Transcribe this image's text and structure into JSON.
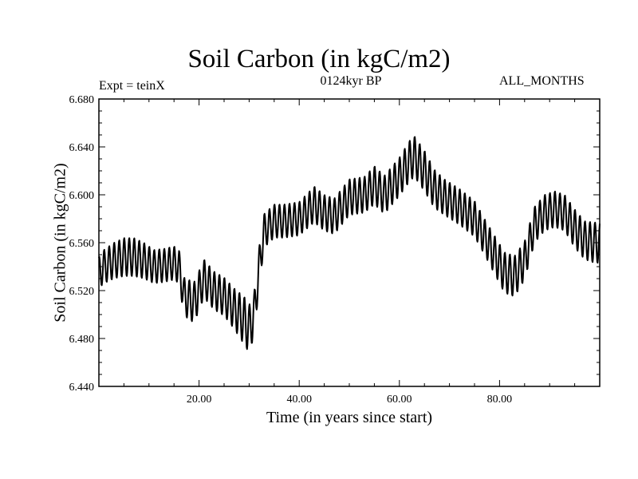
{
  "chart_data": {
    "type": "line",
    "title": "Soil Carbon (in kgC/m2)",
    "subtitle": "0124kyr BP",
    "experiment_label": "Expt = teinX",
    "months_label": "ALL_MONTHS",
    "xlabel": "Time (in years since start)",
    "ylabel": "Soil Carbon (in kgC/m2)",
    "xlim": [
      0,
      100
    ],
    "ylim": [
      6.44,
      6.68
    ],
    "x_ticks": [
      20,
      40,
      60,
      80
    ],
    "x_tick_labels": [
      "20.00",
      "40.00",
      "60.00",
      "80.00"
    ],
    "y_ticks": [
      6.44,
      6.48,
      6.52,
      6.56,
      6.6,
      6.64,
      6.68
    ],
    "y_tick_labels": [
      "6.440",
      "6.480",
      "6.520",
      "6.560",
      "6.600",
      "6.640",
      "6.680"
    ],
    "seasonal_cycle_years": 1,
    "series": [
      {
        "name": "Soil Carbon",
        "color": "#000000",
        "anchor_x": [
          0,
          1,
          3,
          5,
          7,
          9,
          11,
          13,
          15,
          16,
          17,
          19,
          21,
          23,
          25,
          27,
          29,
          30,
          31,
          32,
          33,
          35,
          37,
          40,
          43,
          45,
          47,
          50,
          53,
          55,
          57,
          60,
          62,
          63,
          65,
          67,
          69,
          72,
          75,
          77,
          79,
          81,
          83,
          85,
          87,
          89,
          91,
          93,
          95,
          97,
          99,
          100
        ],
        "mean": [
          6.535,
          6.54,
          6.545,
          6.548,
          6.548,
          6.545,
          6.54,
          6.541,
          6.543,
          6.54,
          6.515,
          6.51,
          6.53,
          6.52,
          6.515,
          6.505,
          6.495,
          6.488,
          6.5,
          6.54,
          6.57,
          6.578,
          6.578,
          6.58,
          6.592,
          6.585,
          6.582,
          6.598,
          6.6,
          6.608,
          6.6,
          6.615,
          6.628,
          6.632,
          6.62,
          6.605,
          6.598,
          6.59,
          6.58,
          6.565,
          6.55,
          6.535,
          6.532,
          6.545,
          6.575,
          6.585,
          6.588,
          6.585,
          6.572,
          6.562,
          6.56,
          6.56
        ],
        "amplitude": [
          0.013,
          0.014,
          0.015,
          0.016,
          0.016,
          0.015,
          0.014,
          0.014,
          0.014,
          0.014,
          0.016,
          0.017,
          0.016,
          0.016,
          0.016,
          0.017,
          0.02,
          0.02,
          0.018,
          0.016,
          0.014,
          0.014,
          0.014,
          0.014,
          0.015,
          0.015,
          0.015,
          0.015,
          0.015,
          0.016,
          0.016,
          0.016,
          0.017,
          0.017,
          0.017,
          0.016,
          0.015,
          0.015,
          0.015,
          0.015,
          0.016,
          0.017,
          0.017,
          0.016,
          0.015,
          0.015,
          0.015,
          0.015,
          0.016,
          0.016,
          0.017,
          0.017
        ]
      }
    ]
  }
}
